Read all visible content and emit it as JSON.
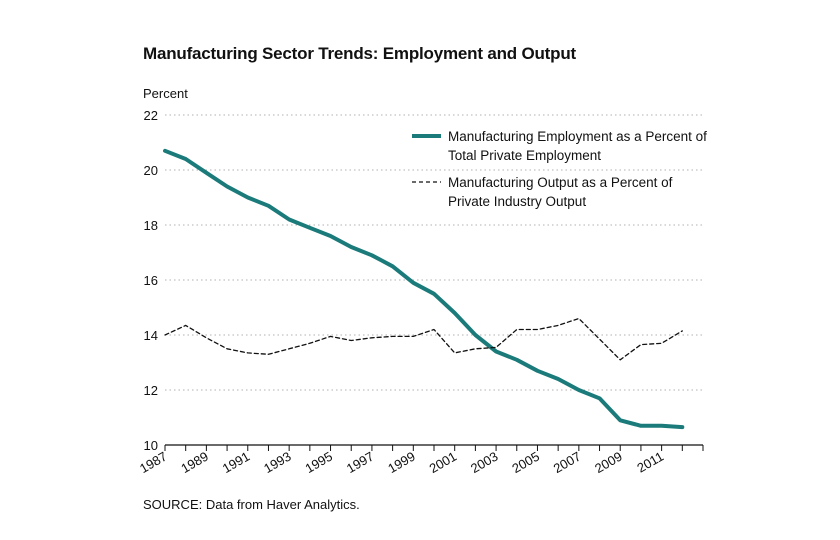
{
  "title": "Manufacturing Sector Trends: Employment and Output",
  "source": "SOURCE: Data from Haver Analytics.",
  "chart_data": {
    "type": "line",
    "ylabel": "Percent",
    "ylim": [
      10,
      22
    ],
    "yticks": [
      10,
      12,
      14,
      16,
      18,
      20,
      22
    ],
    "xlim": [
      1987,
      2013
    ],
    "xtick_labels": [
      "1987",
      "1989",
      "1991",
      "1993",
      "1995",
      "1997",
      "1999",
      "2001",
      "2003",
      "2005",
      "2007",
      "2009",
      "2011"
    ],
    "grid": "horizontal dotted",
    "legend_position": "top-right",
    "x": [
      1987,
      1988,
      1989,
      1990,
      1991,
      1992,
      1993,
      1994,
      1995,
      1996,
      1997,
      1998,
      1999,
      2000,
      2001,
      2002,
      2003,
      2004,
      2005,
      2006,
      2007,
      2008,
      2009,
      2010,
      2011,
      2012
    ],
    "series": [
      {
        "name": "Manufacturing Employment as a Percent of Total Private Employment",
        "legend_lines": [
          "Manufacturing Employment as a Percent of",
          "Total Private Employment"
        ],
        "style": "solid",
        "color": "#1b7a7a",
        "values": [
          20.7,
          20.4,
          19.9,
          19.4,
          19.0,
          18.7,
          18.2,
          17.9,
          17.6,
          17.2,
          16.9,
          16.5,
          15.9,
          15.5,
          14.8,
          14.0,
          13.4,
          13.1,
          12.7,
          12.4,
          12.0,
          11.7,
          10.9,
          10.7,
          10.7,
          10.65
        ]
      },
      {
        "name": "Manufacturing Output as a Percent of Private Industry Output",
        "legend_lines": [
          "Manufacturing Output as a Percent of",
          "Private Industry Output"
        ],
        "style": "dashed",
        "color": "#111111",
        "values": [
          14.0,
          14.35,
          13.9,
          13.5,
          13.35,
          13.3,
          13.5,
          13.7,
          13.95,
          13.8,
          13.9,
          13.95,
          13.95,
          14.2,
          13.35,
          13.5,
          13.55,
          14.2,
          14.2,
          14.35,
          14.6,
          13.85,
          13.1,
          13.65,
          13.7,
          14.15
        ]
      }
    ]
  }
}
